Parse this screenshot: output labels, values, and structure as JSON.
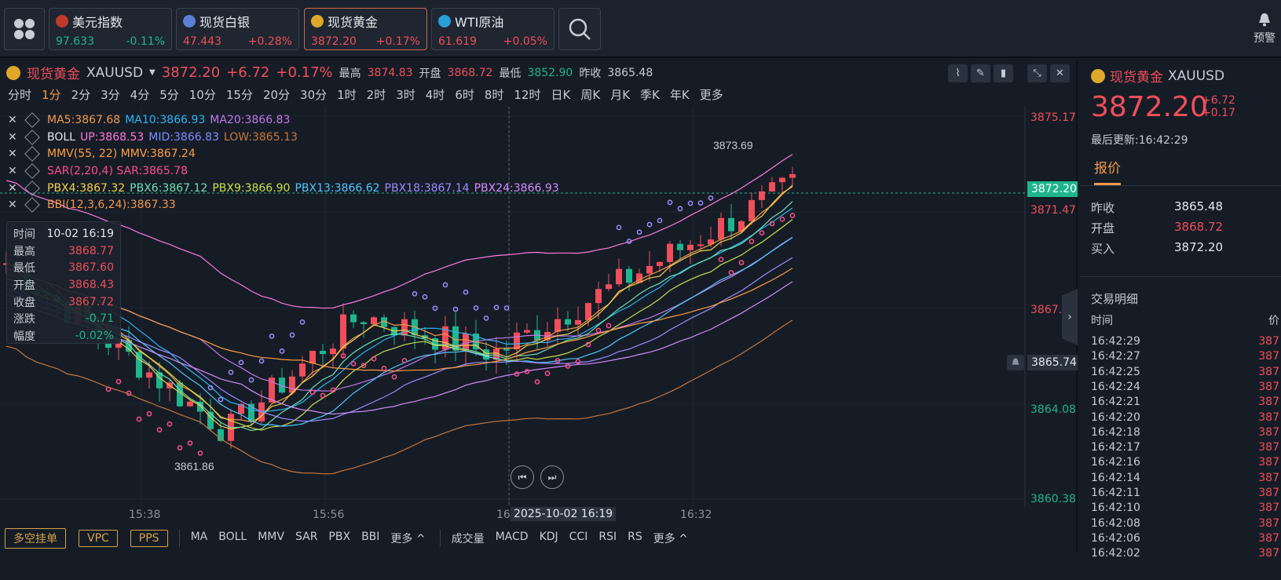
{
  "topbar": {
    "tickers": [
      {
        "name": "美元指数",
        "price": "97.633",
        "change": "-0.11%",
        "dir": "down",
        "icon": "us-flag-icon"
      },
      {
        "name": "现货白银",
        "price": "47.443",
        "change": "+0.28%",
        "dir": "up",
        "icon": "silver-icon"
      },
      {
        "name": "现货黄金",
        "price": "3872.20",
        "change": "+0.17%",
        "dir": "up",
        "icon": "gold-icon"
      },
      {
        "name": "WTI原油",
        "price": "61.619",
        "change": "+0.05%",
        "dir": "up",
        "icon": "oil-icon"
      }
    ],
    "alert_label": "预警"
  },
  "chart_header": {
    "symbol_name": "现货黄金",
    "symbol_code": "XAUUSD",
    "price": "3872.20",
    "change": "+6.72",
    "change_pct": "+0.17%",
    "high_label": "最高",
    "high": "3874.83",
    "open_label": "开盘",
    "open": "3868.72",
    "low_label": "最低",
    "low": "3852.90",
    "prev_label": "昨收",
    "prev": "3865.48"
  },
  "periods": [
    "分时",
    "1分",
    "2分",
    "3分",
    "4分",
    "5分",
    "10分",
    "15分",
    "20分",
    "30分",
    "1时",
    "2时",
    "3时",
    "4时",
    "6时",
    "8时",
    "12时",
    "日K",
    "周K",
    "月K",
    "季K",
    "年K",
    "更多"
  ],
  "selected_period": "1分",
  "indicators": {
    "ma": {
      "ma5": "MA5:3867.68",
      "ma10": "MA10:3866.93",
      "ma20": "MA20:3866.83"
    },
    "boll": {
      "label": "BOLL",
      "up": "UP:3868.53",
      "mid": "MID:3866.83",
      "low": "LOW:3865.13"
    },
    "mmv": "MMV(55, 22) MMV:3867.24",
    "sar": "SAR(2,20,4) SAR:3865.78",
    "pbx": {
      "pbx4": "PBX4:3867.32",
      "pbx6": "PBX6:3867.12",
      "pbx9": "PBX9:3866.90",
      "pbx13": "PBX13:3866.62",
      "pbx18": "PBX18:3867.14",
      "pbx24": "PBX24:3866.93"
    },
    "bbi": "BBI(12,3,6,24):3867.33"
  },
  "tooltip": {
    "rows": [
      {
        "k": "时间",
        "v": "10-02 16:19",
        "c": "#e6e8ec"
      },
      {
        "k": "最高",
        "v": "3868.77",
        "c": "#f04e5a"
      },
      {
        "k": "最低",
        "v": "3867.60",
        "c": "#f04e5a"
      },
      {
        "k": "开盘",
        "v": "3868.43",
        "c": "#f04e5a"
      },
      {
        "k": "收盘",
        "v": "3867.72",
        "c": "#f04e5a"
      },
      {
        "k": "涨跌",
        "v": "-0.71",
        "c": "#1fb58e"
      },
      {
        "k": "幅度",
        "v": "-0.02%",
        "c": "#1fb58e"
      }
    ]
  },
  "price_axis": [
    "3875.17",
    "3871.47",
    "3867.77",
    "3864.08",
    "3860.38"
  ],
  "current_price_tag": "3872.20",
  "alert_price_tag": "3865.74",
  "time_axis": [
    "15:38",
    "15:56",
    "16",
    "16:32"
  ],
  "crosshair_time": "2025-10-02 16:19",
  "peak_label": "3873.69",
  "trough_label": "3861.86",
  "bottom_bar": {
    "buttons": [
      "多空挂单",
      "VPC",
      "PPS"
    ],
    "main_inds": [
      "MA",
      "BOLL",
      "MMV",
      "SAR",
      "PBX",
      "BBI",
      "更多 ^"
    ],
    "sub_inds": [
      "成交量",
      "MACD",
      "KDJ",
      "CCI",
      "RSI",
      "RS",
      "更多 ^"
    ]
  },
  "side": {
    "title": "现货黄金",
    "code": "XAUUSD",
    "price": "3872.20",
    "change": "+6.72",
    "change_pct": "+0.17",
    "update": "最后更新:16:42:29",
    "tab": "报价",
    "kv": [
      {
        "k": "昨收",
        "v": "3865.48",
        "c": "#e6e8ec"
      },
      {
        "k": "开盘",
        "v": "3868.72",
        "c": "#f04e5a"
      },
      {
        "k": "买入",
        "v": "3872.20",
        "c": "#e6e8ec"
      }
    ],
    "trade_title": "交易明细",
    "col_time": "时间",
    "col_price": "价",
    "trades": [
      {
        "t": "16:42:29",
        "p": "387"
      },
      {
        "t": "16:42:27",
        "p": "387"
      },
      {
        "t": "16:42:25",
        "p": "387"
      },
      {
        "t": "16:42:24",
        "p": "387"
      },
      {
        "t": "16:42:21",
        "p": "387"
      },
      {
        "t": "16:42:20",
        "p": "387"
      },
      {
        "t": "16:42:18",
        "p": "387"
      },
      {
        "t": "16:42:17",
        "p": "387"
      },
      {
        "t": "16:42:16",
        "p": "387"
      },
      {
        "t": "16:42:14",
        "p": "387"
      },
      {
        "t": "16:42:11",
        "p": "387"
      },
      {
        "t": "16:42:10",
        "p": "387"
      },
      {
        "t": "16:42:08",
        "p": "387"
      },
      {
        "t": "16:42:06",
        "p": "387"
      },
      {
        "t": "16:42:02",
        "p": "387"
      }
    ]
  },
  "colors": {
    "up": "#f04e5a",
    "down": "#1fb58e",
    "accent": "#f2994a",
    "ma5": "#f2994a",
    "ma10": "#29b6f6",
    "ma20": "#c07ae8",
    "boll_up": "#ff7ad9",
    "boll_mid": "#7f8cff",
    "boll_low": "#c8763a",
    "mmv": "#ff9f40",
    "sar": "#ff4d8d",
    "pbx4": "#f5d04a",
    "pbx6": "#6ee0b4",
    "pbx9": "#c6e04a",
    "pbx13": "#4ec7ff",
    "pbx18": "#9a8cff",
    "pbx24": "#d68cff",
    "bbi": "#f2994a"
  }
}
